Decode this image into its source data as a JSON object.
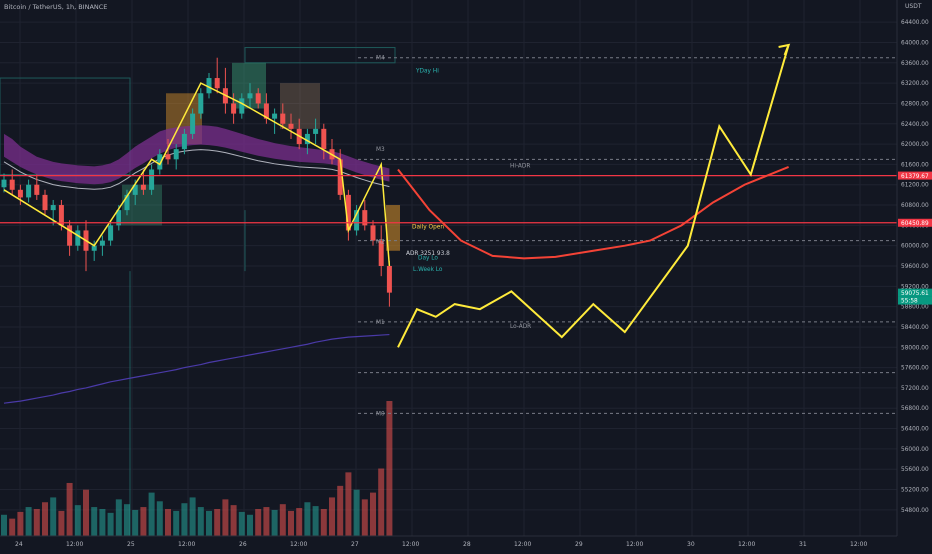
{
  "header": {
    "title": "Bitcoin / TetherUS, 1h, BINANCE",
    "currency": "USDT"
  },
  "chart_data": {
    "type": "candlestick",
    "symbol": "Bitcoin / TetherUS",
    "interval": "1h",
    "exchange": "BINANCE",
    "ylim": [
      54600,
      64600
    ],
    "y_ticks": [
      54800,
      55200,
      55600,
      56000,
      56400,
      56800,
      57200,
      57600,
      58000,
      58400,
      58800,
      59200,
      59600,
      60000,
      60400,
      60800,
      61200,
      61600,
      62000,
      62400,
      62800,
      63200,
      63600,
      64000,
      64400
    ],
    "x_ticks": [
      "24",
      "12:00",
      "25",
      "12:00",
      "26",
      "12:00",
      "27",
      "12:00",
      "28",
      "12:00",
      "29",
      "12:00",
      "30",
      "12:00",
      "31",
      "12:00"
    ],
    "price_tags": [
      {
        "label": "61379.67",
        "value": 61379.67,
        "color": "#f23645"
      },
      {
        "label": "60450.89",
        "value": 60450.89,
        "color": "#f23645"
      },
      {
        "label": "59075.61",
        "value": 59075.61,
        "color": "#089981"
      },
      {
        "label": "55:58",
        "value": 58920,
        "color": "#089981"
      }
    ],
    "level_labels": [
      {
        "text": "M4",
        "value": 63700,
        "color": "#9598a1"
      },
      {
        "text": "YDay Hi",
        "value": 63450,
        "color": "#2bb5b0"
      },
      {
        "text": "M3",
        "value": 61900,
        "color": "#9598a1"
      },
      {
        "text": "Hi-ADR",
        "value": 61580,
        "color": "#9598a1"
      },
      {
        "text": "Daily Open",
        "value": 60380,
        "color": "#ffd54a"
      },
      {
        "text": "M2",
        "value": 60080,
        "color": "#9598a1"
      },
      {
        "text": "ADR 3251 93.8",
        "value": 59860,
        "color": "#d1d4dc"
      },
      {
        "text": "Day Lo",
        "value": 59770,
        "color": "#2bb5b0"
      },
      {
        "text": "L.Week Lo",
        "value": 59540,
        "color": "#2bb5b0"
      },
      {
        "text": "M1",
        "value": 58500,
        "color": "#9598a1"
      },
      {
        "text": "Lo-ADR",
        "value": 58420,
        "color": "#9598a1"
      },
      {
        "text": "M0",
        "value": 56700,
        "color": "#9598a1"
      }
    ],
    "candles": [
      [
        61150,
        61420,
        61050,
        61300
      ],
      [
        61300,
        61500,
        61000,
        61100
      ],
      [
        61100,
        61200,
        60800,
        60950
      ],
      [
        60950,
        61300,
        60850,
        61200
      ],
      [
        61200,
        61400,
        60900,
        61000
      ],
      [
        61000,
        61100,
        60600,
        60700
      ],
      [
        60700,
        60900,
        60400,
        60800
      ],
      [
        60800,
        60900,
        60300,
        60400
      ],
      [
        60400,
        60500,
        59800,
        60000
      ],
      [
        60000,
        60400,
        59900,
        60300
      ],
      [
        60300,
        60500,
        59500,
        59900
      ],
      [
        59900,
        60100,
        59700,
        60000
      ],
      [
        60000,
        60200,
        59800,
        60100
      ],
      [
        60100,
        60500,
        60000,
        60400
      ],
      [
        60400,
        60800,
        60300,
        60700
      ],
      [
        60700,
        61100,
        60600,
        61000
      ],
      [
        61000,
        61300,
        60800,
        61200
      ],
      [
        61200,
        61500,
        61000,
        61100
      ],
      [
        61100,
        61600,
        61000,
        61500
      ],
      [
        61500,
        61900,
        61400,
        61800
      ],
      [
        61800,
        62100,
        61600,
        61700
      ],
      [
        61700,
        62000,
        61500,
        61900
      ],
      [
        61900,
        62300,
        61800,
        62200
      ],
      [
        62200,
        62700,
        62100,
        62600
      ],
      [
        62600,
        63100,
        62500,
        63000
      ],
      [
        63000,
        63400,
        62900,
        63300
      ],
      [
        63300,
        63700,
        63000,
        63100
      ],
      [
        63100,
        63500,
        62600,
        62800
      ],
      [
        62800,
        63000,
        62400,
        62600
      ],
      [
        62600,
        63000,
        62500,
        62900
      ],
      [
        62900,
        63200,
        62700,
        63000
      ],
      [
        63000,
        63100,
        62700,
        62800
      ],
      [
        62800,
        63000,
        62400,
        62500
      ],
      [
        62500,
        62700,
        62200,
        62600
      ],
      [
        62600,
        62800,
        62300,
        62400
      ],
      [
        62400,
        62600,
        62100,
        62300
      ],
      [
        62300,
        62500,
        61900,
        62000
      ],
      [
        62000,
        62300,
        61800,
        62200
      ],
      [
        62200,
        62500,
        62000,
        62300
      ],
      [
        62300,
        62400,
        61700,
        61900
      ],
      [
        61900,
        62100,
        61600,
        61700
      ],
      [
        61700,
        61900,
        60900,
        61000
      ],
      [
        61000,
        61100,
        60100,
        60300
      ],
      [
        60300,
        60800,
        60200,
        60700
      ],
      [
        60700,
        60900,
        60300,
        60400
      ],
      [
        60400,
        60500,
        60000,
        60100
      ],
      [
        60100,
        60400,
        59400,
        59600
      ],
      [
        59600,
        59700,
        58800,
        59075.61
      ]
    ],
    "volumes": [
      22,
      18,
      25,
      30,
      28,
      35,
      40,
      26,
      55,
      32,
      48,
      30,
      28,
      24,
      38,
      33,
      27,
      30,
      45,
      36,
      28,
      26,
      34,
      40,
      30,
      26,
      28,
      38,
      32,
      25,
      22,
      28,
      30,
      27,
      33,
      26,
      29,
      35,
      31,
      28,
      40,
      52,
      66,
      48,
      38,
      45,
      70,
      140
    ],
    "sma_line": [
      56900,
      56920,
      56940,
      56970,
      57000,
      57030,
      57060,
      57100,
      57130,
      57170,
      57200,
      57240,
      57280,
      57320,
      57350,
      57380,
      57410,
      57440,
      57470,
      57500,
      57530,
      57560,
      57600,
      57630,
      57660,
      57700,
      57730,
      57760,
      57790,
      57820,
      57850,
      57880,
      57910,
      57940,
      57970,
      58000,
      58030,
      58060,
      58100,
      58130,
      58160,
      58180,
      58200,
      58210,
      58220,
      58230,
      58240,
      58250
    ],
    "ema_cloud_upper": [
      62200,
      62100,
      61950,
      61850,
      61750,
      61700,
      61650,
      61620,
      61600,
      61580,
      61570,
      61560,
      61580,
      61620,
      61700,
      61820,
      61950,
      62050,
      62150,
      62250,
      62300,
      62330,
      62350,
      62360,
      62370,
      62360,
      62340,
      62300,
      62250,
      62200,
      62150,
      62100,
      62060,
      62020,
      61990,
      61960,
      61940,
      61920,
      61900,
      61880,
      61860,
      61820,
      61760,
      61700,
      61650,
      61600,
      61560,
      61520
    ],
    "ema_cloud_lower": [
      61750,
      61650,
      61550,
      61470,
      61400,
      61350,
      61300,
      61270,
      61250,
      61230,
      61220,
      61210,
      61220,
      61250,
      61320,
      61420,
      61530,
      61620,
      61720,
      61810,
      61880,
      61930,
      61960,
      61980,
      61990,
      61980,
      61960,
      61930,
      61890,
      61850,
      61810,
      61770,
      61740,
      61710,
      61690,
      61670,
      61650,
      61640,
      61630,
      61620,
      61600,
      61560,
      61500,
      61440,
      61390,
      61340,
      61300,
      61260
    ],
    "projection_yellow": [
      [
        0,
        58000
      ],
      [
        3,
        58750
      ],
      [
        6,
        58600
      ],
      [
        9,
        58850
      ],
      [
        13,
        58750
      ],
      [
        18,
        59100
      ],
      [
        26,
        58200
      ],
      [
        31,
        58850
      ],
      [
        36,
        58300
      ],
      [
        46,
        60000
      ],
      [
        51,
        62350
      ],
      [
        56,
        61400
      ],
      [
        62,
        63950
      ]
    ],
    "projection_red": [
      [
        0,
        61500
      ],
      [
        5,
        60700
      ],
      [
        10,
        60100
      ],
      [
        15,
        59800
      ],
      [
        20,
        59750
      ],
      [
        25,
        59780
      ],
      [
        31,
        59900
      ],
      [
        36,
        60000
      ],
      [
        40,
        60100
      ],
      [
        45,
        60400
      ],
      [
        50,
        60850
      ],
      [
        55,
        61200
      ],
      [
        59,
        61400
      ],
      [
        62,
        61550
      ]
    ]
  }
}
